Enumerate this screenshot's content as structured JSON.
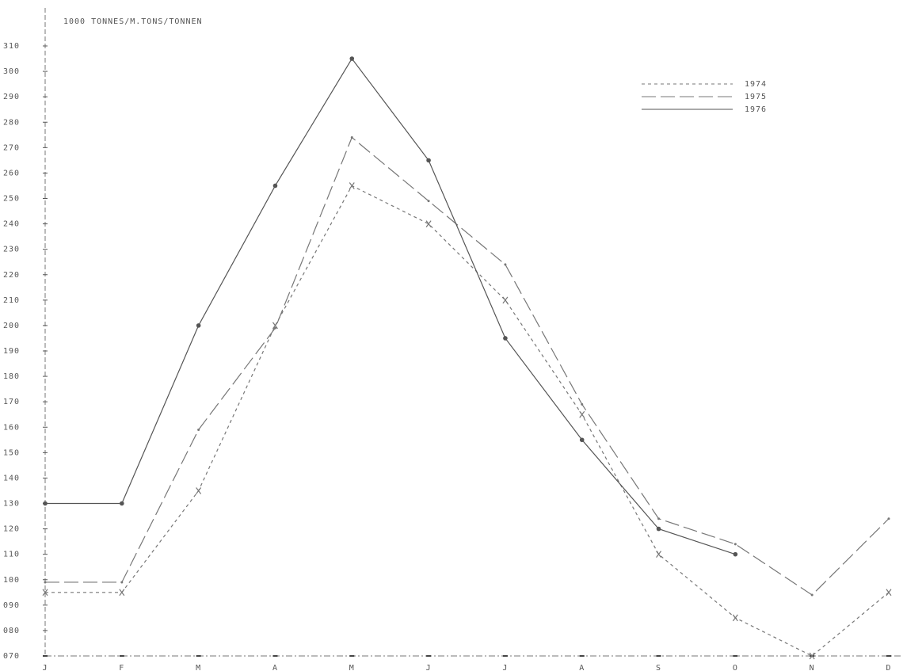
{
  "chart_data": {
    "type": "line",
    "title": "1000 TONNES/M.TONS/TONNEN",
    "categories": [
      "J",
      "F",
      "M",
      "A",
      "M",
      "J",
      "J",
      "A",
      "S",
      "O",
      "N",
      "D"
    ],
    "series": [
      {
        "name": "1974",
        "color": "#777",
        "values": [
          95,
          95,
          135,
          200,
          255,
          240,
          210,
          165,
          110,
          85,
          70,
          95
        ]
      },
      {
        "name": "1975",
        "color": "#777",
        "values": [
          99,
          99,
          159,
          199,
          274,
          249,
          224,
          169,
          124,
          114,
          94,
          124
        ]
      },
      {
        "name": "1976",
        "color": "#555",
        "values": [
          130,
          130,
          200,
          255,
          305,
          265,
          195,
          155,
          120,
          110,
          null,
          null
        ]
      }
    ],
    "ylim": [
      70,
      310
    ],
    "yticks": [
      {
        "value": 70,
        "label": "070"
      },
      {
        "value": 80,
        "label": "080"
      },
      {
        "value": 90,
        "label": "090"
      },
      100,
      110,
      120,
      130,
      140,
      150,
      160,
      170,
      180,
      190,
      200,
      210,
      220,
      230,
      240,
      250,
      260,
      270,
      280,
      290,
      300,
      310
    ],
    "legend": "upper right"
  }
}
